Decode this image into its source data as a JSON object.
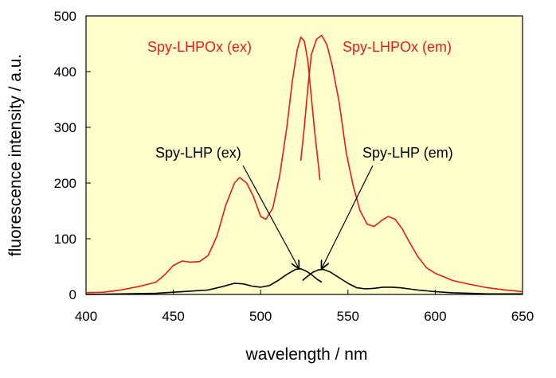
{
  "chart_data": {
    "type": "line",
    "xlabel": "wavelength / nm",
    "ylabel": "fluorescence intensity / a.u.",
    "xlim": [
      400,
      650
    ],
    "ylim": [
      0,
      500
    ],
    "xticks": [
      400,
      450,
      500,
      550,
      600,
      650
    ],
    "yticks": [
      0,
      100,
      200,
      300,
      400,
      500
    ],
    "grid": false,
    "plot_background": "#ffffcc",
    "series": [
      {
        "name": "Spy-LHPOx (ex)",
        "color": "#e8191b",
        "points": [
          [
            400,
            3
          ],
          [
            410,
            4
          ],
          [
            420,
            8
          ],
          [
            430,
            14
          ],
          [
            440,
            22
          ],
          [
            445,
            35
          ],
          [
            450,
            52
          ],
          [
            455,
            60
          ],
          [
            460,
            58
          ],
          [
            465,
            59
          ],
          [
            470,
            70
          ],
          [
            475,
            105
          ],
          [
            480,
            160
          ],
          [
            485,
            200
          ],
          [
            488,
            210
          ],
          [
            492,
            200
          ],
          [
            496,
            175
          ],
          [
            500,
            140
          ],
          [
            503,
            135
          ],
          [
            507,
            155
          ],
          [
            511,
            215
          ],
          [
            515,
            300
          ],
          [
            518,
            380
          ],
          [
            521,
            440
          ],
          [
            523,
            462
          ],
          [
            525,
            455
          ],
          [
            527,
            420
          ],
          [
            529,
            355
          ],
          [
            531,
            290
          ],
          [
            533,
            235
          ],
          [
            534,
            205
          ]
        ]
      },
      {
        "name": "Spy-LHPOx (em)",
        "color": "#e8191b",
        "points": [
          [
            523,
            240
          ],
          [
            525,
            300
          ],
          [
            527,
            370
          ],
          [
            529,
            430
          ],
          [
            532,
            458
          ],
          [
            535,
            465
          ],
          [
            538,
            448
          ],
          [
            541,
            410
          ],
          [
            545,
            345
          ],
          [
            549,
            255
          ],
          [
            553,
            195
          ],
          [
            557,
            150
          ],
          [
            561,
            126
          ],
          [
            565,
            122
          ],
          [
            569,
            132
          ],
          [
            573,
            140
          ],
          [
            577,
            135
          ],
          [
            581,
            118
          ],
          [
            585,
            95
          ],
          [
            590,
            68
          ],
          [
            595,
            48
          ],
          [
            600,
            38
          ],
          [
            610,
            25
          ],
          [
            620,
            18
          ],
          [
            630,
            12
          ],
          [
            640,
            8
          ],
          [
            650,
            5
          ]
        ]
      },
      {
        "name": "Spy-LHP (ex)",
        "color": "#000000",
        "points": [
          [
            400,
            0
          ],
          [
            420,
            1
          ],
          [
            440,
            2
          ],
          [
            450,
            4
          ],
          [
            460,
            6
          ],
          [
            470,
            8
          ],
          [
            478,
            14
          ],
          [
            485,
            20
          ],
          [
            490,
            19
          ],
          [
            495,
            15
          ],
          [
            500,
            13
          ],
          [
            505,
            16
          ],
          [
            510,
            25
          ],
          [
            515,
            36
          ],
          [
            520,
            45
          ],
          [
            523,
            46
          ],
          [
            526,
            42
          ],
          [
            529,
            36
          ],
          [
            532,
            28
          ],
          [
            535,
            22
          ]
        ]
      },
      {
        "name": "Spy-LHP (em)",
        "color": "#000000",
        "points": [
          [
            524,
            25
          ],
          [
            527,
            33
          ],
          [
            530,
            40
          ],
          [
            533,
            44
          ],
          [
            536,
            45
          ],
          [
            540,
            40
          ],
          [
            545,
            30
          ],
          [
            550,
            20
          ],
          [
            555,
            12
          ],
          [
            560,
            10
          ],
          [
            565,
            11
          ],
          [
            570,
            13
          ],
          [
            575,
            13
          ],
          [
            580,
            12
          ],
          [
            585,
            10
          ],
          [
            590,
            8
          ],
          [
            600,
            5
          ],
          [
            610,
            3
          ],
          [
            620,
            2
          ],
          [
            630,
            1
          ],
          [
            640,
            1
          ],
          [
            650,
            1
          ]
        ]
      }
    ],
    "annotations": [
      {
        "text": "Spy-LHPOx (ex)",
        "color": "#e8191b"
      },
      {
        "text": "Spy-LHPOx (em)",
        "color": "#e8191b"
      },
      {
        "text": "Spy-LHP (ex)",
        "color": "#000000",
        "arrow_to": [
          521,
          47
        ]
      },
      {
        "text": "Spy-LHP (em)",
        "color": "#000000",
        "arrow_to": [
          534,
          47
        ]
      }
    ]
  }
}
